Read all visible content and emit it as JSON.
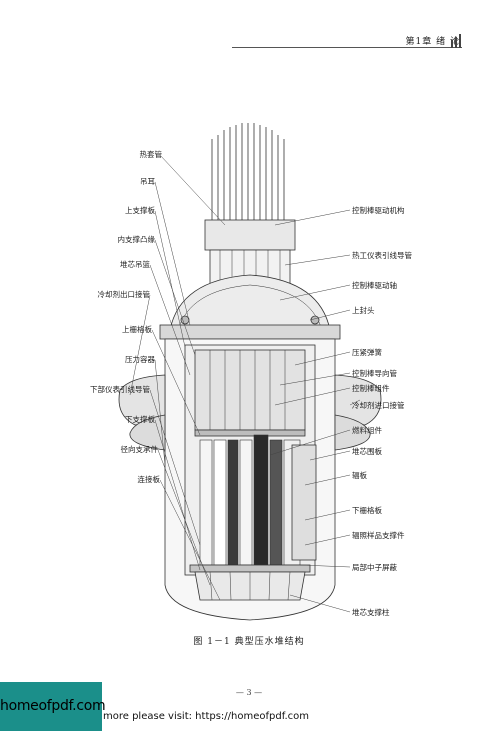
{
  "header": {
    "chapter": "第1章  绪  论"
  },
  "figure": {
    "labels_left": [
      "热套管",
      "吊耳",
      "上支撑板",
      "内支撑凸缘",
      "堆芯吊篮",
      "冷却剂出口接管",
      "上栅格板",
      "压力容器",
      "下部仪表引线导管",
      "下支撑板",
      "径向支承件",
      "连接板"
    ],
    "labels_right": [
      "控制棒驱动机构",
      "热工仪表引线导管",
      "控制棒驱动轴",
      "上封头",
      "压紧弹簧",
      "控制棒导向管",
      "控制棒组件",
      "冷却剂进口接管",
      "燃料组件",
      "堆芯围板",
      "辐板",
      "下栅格板",
      "辐照样品支撑件",
      "局部中子屏蔽",
      "堆芯支撑柱"
    ]
  },
  "caption": "图 1－1   典型压水堆结构",
  "page_number": "— 3 —",
  "watermark": {
    "logo": "homeofpdf.com",
    "text": "more please visit: https://homeofpdf.com"
  },
  "colors": {
    "ink": "#222222",
    "watermark_bg": "#1b8f8a"
  }
}
